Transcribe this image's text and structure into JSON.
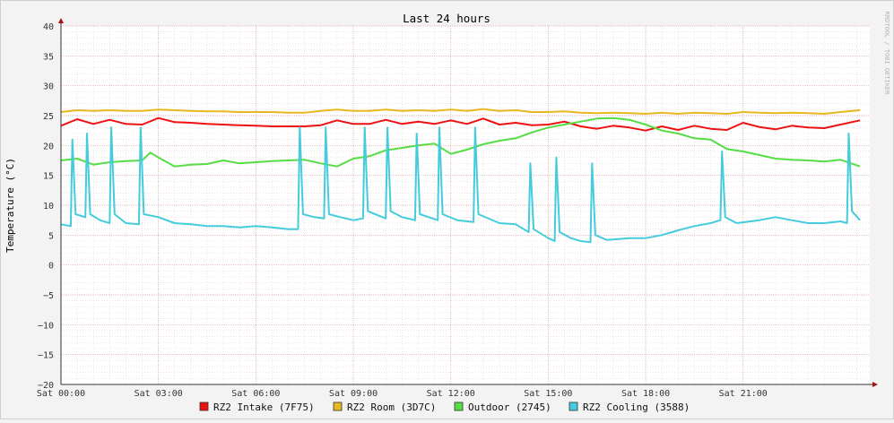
{
  "chart_data": {
    "type": "line",
    "title": "Last 24 hours",
    "ylabel": "Temperature (°C)",
    "xlabel": "",
    "watermark": "RRDTOOL / TOBI OETIKER",
    "ylim": [
      -20,
      40
    ],
    "yticks": [
      40,
      35,
      30,
      25,
      20,
      15,
      10,
      5,
      0,
      -5,
      -10,
      -15,
      -20
    ],
    "xlim": [
      0,
      24.9
    ],
    "xticks": [
      {
        "x": 0,
        "label": "Sat 00:00"
      },
      {
        "x": 3,
        "label": "Sat 03:00"
      },
      {
        "x": 6,
        "label": "Sat 06:00"
      },
      {
        "x": 9,
        "label": "Sat 09:00"
      },
      {
        "x": 12,
        "label": "Sat 12:00"
      },
      {
        "x": 15,
        "label": "Sat 15:00"
      },
      {
        "x": 18,
        "label": "Sat 18:00"
      },
      {
        "x": 21,
        "label": "Sat 21:00"
      }
    ],
    "grid": true,
    "legend_position": "bottom",
    "series": [
      {
        "name": "RZ2 Intake (7F75)",
        "color": "#ee1111",
        "x": [
          0,
          0.5,
          1,
          1.5,
          2,
          2.5,
          3,
          3.5,
          4,
          4.5,
          5,
          5.5,
          6,
          6.5,
          7,
          7.5,
          8,
          8.5,
          9,
          9.5,
          10,
          10.5,
          11,
          11.5,
          12,
          12.5,
          13,
          13.5,
          14,
          14.5,
          15,
          15.5,
          16,
          16.5,
          17,
          17.5,
          18,
          18.5,
          19,
          19.5,
          20,
          20.5,
          21,
          21.5,
          22,
          22.5,
          23,
          23.5,
          24,
          24.6
        ],
        "y": [
          23.3,
          24.4,
          23.6,
          24.3,
          23.6,
          23.5,
          24.6,
          23.9,
          23.8,
          23.6,
          23.5,
          23.4,
          23.3,
          23.2,
          23.2,
          23.2,
          23.4,
          24.2,
          23.6,
          23.6,
          24.3,
          23.6,
          24.0,
          23.6,
          24.2,
          23.6,
          24.5,
          23.5,
          23.8,
          23.4,
          23.5,
          24.0,
          23.2,
          22.8,
          23.3,
          23.0,
          22.5,
          23.2,
          22.6,
          23.3,
          22.8,
          22.6,
          23.8,
          23.1,
          22.7,
          23.3,
          23.0,
          22.9,
          23.5,
          24.2
        ]
      },
      {
        "name": "RZ2 Room (3D7C)",
        "color": "#e8b820",
        "x": [
          0,
          0.5,
          1,
          1.5,
          2,
          2.5,
          3,
          3.5,
          4,
          4.5,
          5,
          5.5,
          6,
          6.5,
          7,
          7.5,
          8,
          8.5,
          9,
          9.5,
          10,
          10.5,
          11,
          11.5,
          12,
          12.5,
          13,
          13.5,
          14,
          14.5,
          15,
          15.5,
          16,
          16.5,
          17,
          17.5,
          18,
          18.5,
          19,
          19.5,
          20,
          20.5,
          21,
          21.5,
          22,
          22.5,
          23,
          23.5,
          24,
          24.6
        ],
        "y": [
          25.6,
          25.9,
          25.8,
          25.9,
          25.8,
          25.8,
          26.0,
          25.9,
          25.8,
          25.7,
          25.7,
          25.6,
          25.6,
          25.6,
          25.5,
          25.5,
          25.8,
          26.0,
          25.8,
          25.8,
          26.0,
          25.8,
          25.9,
          25.8,
          26.0,
          25.8,
          26.1,
          25.8,
          25.9,
          25.6,
          25.6,
          25.7,
          25.5,
          25.4,
          25.5,
          25.4,
          25.3,
          25.5,
          25.3,
          25.5,
          25.4,
          25.3,
          25.6,
          25.5,
          25.4,
          25.5,
          25.4,
          25.3,
          25.6,
          25.9
        ]
      },
      {
        "name": "Outdoor (2745)",
        "color": "#55dd44",
        "x": [
          0,
          0.5,
          1,
          1.5,
          2,
          2.5,
          2.75,
          3,
          3.5,
          4,
          4.5,
          5,
          5.5,
          6,
          6.5,
          7,
          7.5,
          8,
          8.5,
          9,
          9.5,
          10,
          10.5,
          11,
          11.5,
          12,
          12.5,
          13,
          13.5,
          14,
          14.5,
          15,
          15.5,
          16,
          16.5,
          17,
          17.5,
          18,
          18.5,
          19,
          19.5,
          20,
          20.5,
          21,
          21.5,
          22,
          22.5,
          23,
          23.5,
          24,
          24.6
        ],
        "y": [
          17.5,
          17.8,
          16.8,
          17.2,
          17.4,
          17.5,
          18.8,
          18.0,
          16.5,
          16.8,
          16.9,
          17.5,
          17.0,
          17.2,
          17.4,
          17.5,
          17.6,
          17.0,
          16.5,
          17.8,
          18.2,
          19.2,
          19.6,
          20.0,
          20.3,
          18.6,
          19.3,
          20.2,
          20.8,
          21.2,
          22.2,
          23.0,
          23.5,
          24.0,
          24.5,
          24.6,
          24.3,
          23.5,
          22.5,
          22.0,
          21.2,
          21.0,
          19.4,
          19.0,
          18.4,
          17.8,
          17.6,
          17.5,
          17.3,
          17.6,
          16.5
        ]
      },
      {
        "name": "RZ2 Cooling (3588)",
        "color": "#44ccdd",
        "x": [
          0,
          0.3,
          0.35,
          0.45,
          0.75,
          0.8,
          0.9,
          1.2,
          1.5,
          1.55,
          1.65,
          2,
          2.4,
          2.45,
          2.55,
          3,
          3.5,
          4,
          4.5,
          5,
          5.5,
          6,
          6.5,
          7,
          7.3,
          7.35,
          7.45,
          7.8,
          8.1,
          8.15,
          8.25,
          8.6,
          9,
          9.3,
          9.35,
          9.45,
          9.9,
          10,
          10.05,
          10.15,
          10.5,
          10.9,
          10.95,
          11.05,
          11.6,
          11.65,
          11.75,
          12.2,
          12.7,
          12.75,
          12.85,
          13.5,
          14,
          14.4,
          14.45,
          14.55,
          15,
          15.2,
          15.25,
          15.35,
          15.7,
          16,
          16.3,
          16.35,
          16.45,
          16.8,
          17.5,
          18,
          18.5,
          19,
          19.5,
          20,
          20.3,
          20.35,
          20.45,
          20.8,
          21.5,
          22,
          22.5,
          23,
          23.5,
          24,
          24.2,
          24.25,
          24.35,
          24.6
        ],
        "y": [
          6.8,
          6.5,
          21,
          8.5,
          8.0,
          22,
          8.5,
          7.5,
          7.0,
          23,
          8.5,
          7.0,
          6.8,
          23,
          8.5,
          8.0,
          7.0,
          6.8,
          6.5,
          6.5,
          6.3,
          6.5,
          6.3,
          6.0,
          6.0,
          23,
          8.5,
          8.0,
          7.8,
          23,
          8.5,
          8.0,
          7.5,
          7.8,
          23,
          9.0,
          8.0,
          7.8,
          23,
          9.0,
          8.0,
          7.5,
          22,
          8.5,
          7.5,
          23,
          8.5,
          7.5,
          7.2,
          23,
          8.5,
          7.0,
          6.8,
          5.5,
          17,
          6.0,
          4.5,
          4.0,
          18,
          5.5,
          4.5,
          4.0,
          3.8,
          17,
          5.0,
          4.2,
          4.5,
          4.5,
          5.0,
          5.8,
          6.5,
          7.0,
          7.5,
          19,
          8.0,
          7.0,
          7.5,
          8.0,
          7.5,
          7.0,
          7.0,
          7.3,
          7.0,
          22,
          9.0,
          7.5
        ]
      }
    ]
  }
}
